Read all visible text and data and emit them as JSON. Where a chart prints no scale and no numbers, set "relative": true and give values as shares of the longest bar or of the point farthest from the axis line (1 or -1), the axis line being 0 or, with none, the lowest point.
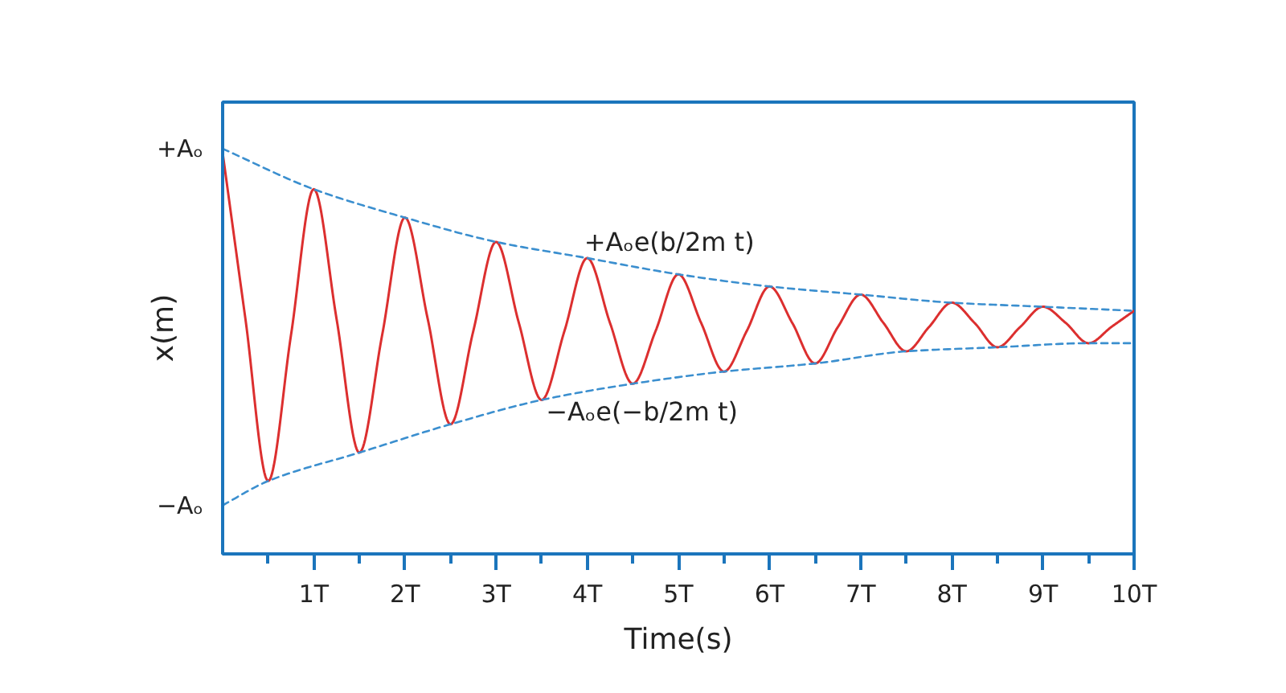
{
  "chart_data": {
    "type": "line",
    "xlabel": "Time(s)",
    "ylabel": "x(m)",
    "relative": true,
    "xlim": [
      0,
      10
    ],
    "xticks": [
      {
        "value": 0.5,
        "label": null
      },
      {
        "value": 1,
        "label": "1T"
      },
      {
        "value": 1.5,
        "label": null
      },
      {
        "value": 2,
        "label": "2T"
      },
      {
        "value": 2.5,
        "label": null
      },
      {
        "value": 3,
        "label": "3T"
      },
      {
        "value": 3.5,
        "label": null
      },
      {
        "value": 4,
        "label": "4T"
      },
      {
        "value": 4.5,
        "label": null
      },
      {
        "value": 5,
        "label": "5T"
      },
      {
        "value": 5.5,
        "label": null
      },
      {
        "value": 6,
        "label": "6T"
      },
      {
        "value": 6.5,
        "label": null
      },
      {
        "value": 7,
        "label": "7T"
      },
      {
        "value": 7.5,
        "label": null
      },
      {
        "value": 8,
        "label": "8T"
      },
      {
        "value": 8.5,
        "label": null
      },
      {
        "value": 9,
        "label": "9T"
      },
      {
        "value": 9.5,
        "label": null
      },
      {
        "value": 10,
        "label": "10T"
      }
    ],
    "grid": false,
    "series": [
      {
        "color": "#dc2f2f",
        "line_style": "solid",
        "x": [
          0,
          0.25,
          0.5,
          0.75,
          1,
          1.25,
          1.5,
          1.75,
          2,
          2.25,
          2.5,
          2.75,
          3,
          3.25,
          3.5,
          3.75,
          4,
          4.25,
          4.5,
          4.75,
          5,
          5.25,
          5.5,
          5.75,
          6,
          6.25,
          6.5,
          6.75,
          7,
          7.25,
          7.5,
          7.75,
          8,
          8.25,
          8.5,
          8.75,
          9,
          9.25,
          9.5,
          9.75,
          10
        ],
        "values": [
          0.99,
          0.58,
          0.18,
          0.54,
          0.9,
          0.58,
          0.25,
          0.54,
          0.83,
          0.58,
          0.32,
          0.55,
          0.77,
          0.57,
          0.38,
          0.55,
          0.73,
          0.57,
          0.42,
          0.55,
          0.69,
          0.57,
          0.45,
          0.55,
          0.66,
          0.57,
          0.47,
          0.56,
          0.64,
          0.57,
          0.5,
          0.56,
          0.62,
          0.57,
          0.51,
          0.56,
          0.61,
          0.57,
          0.52,
          0.56,
          0.6
        ]
      },
      {
        "color": "#3b8fcf",
        "line_style": "dashed",
        "x": [
          0,
          1,
          2,
          3,
          4,
          5,
          6,
          7,
          8,
          9,
          10
        ],
        "values": [
          1.0,
          0.9,
          0.83,
          0.77,
          0.73,
          0.69,
          0.66,
          0.64,
          0.62,
          0.61,
          0.6
        ]
      },
      {
        "color": "#3b8fcf",
        "line_style": "dashed",
        "x": [
          0,
          0.5,
          1.5,
          2.5,
          3.5,
          4.5,
          5.5,
          6.5,
          7.5,
          8.5,
          9.5,
          10
        ],
        "values": [
          0.12,
          0.18,
          0.25,
          0.32,
          0.38,
          0.42,
          0.45,
          0.47,
          0.5,
          0.51,
          0.52,
          0.52
        ]
      }
    ],
    "annotations": [
      {
        "text": "+Aₒ",
        "x": 0,
        "y": 1.0
      },
      {
        "text": "−Aₒ",
        "x": 0,
        "y": 0.12
      },
      {
        "text": "+Aₒe(b/2m t)",
        "x": 4.9,
        "y": 0.7
      },
      {
        "text": "−Aₒe(−b/2m t)",
        "x": 4.6,
        "y": 0.42
      }
    ]
  }
}
